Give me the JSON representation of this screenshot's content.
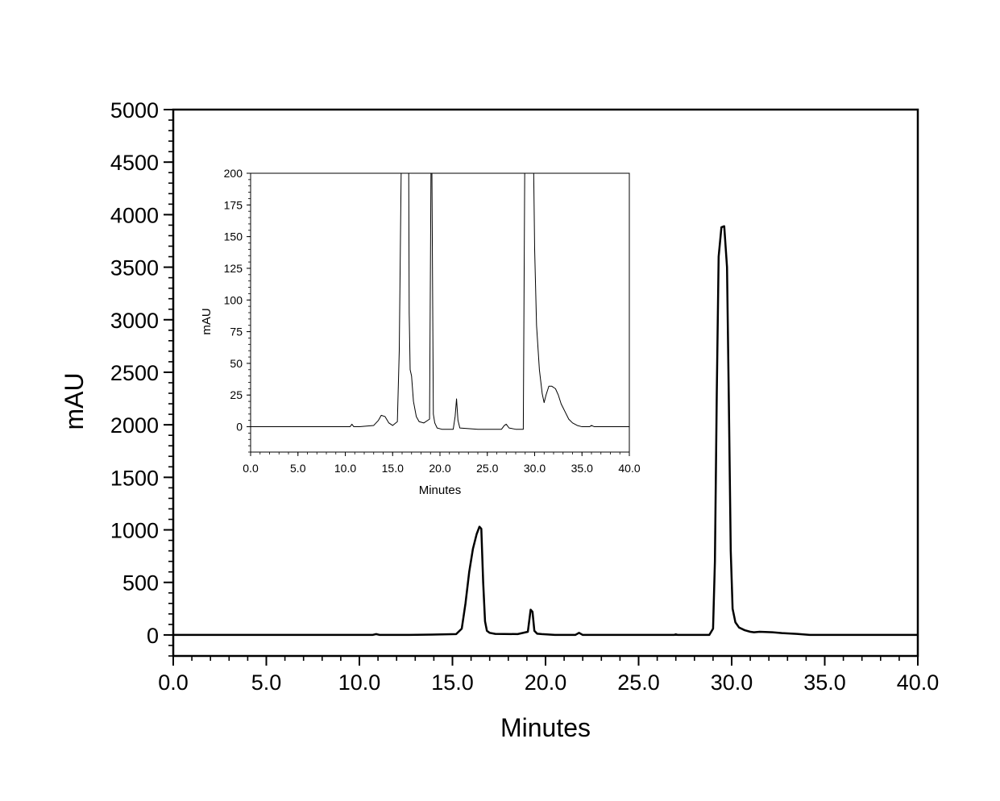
{
  "chart_data": [
    {
      "type": "line",
      "xlabel": "Minutes",
      "ylabel": "mAU",
      "xlim": [
        0,
        40
      ],
      "ylim": [
        -200,
        5000
      ],
      "x_ticks": [
        "0.0",
        "5.0",
        "10.0",
        "15.0",
        "20.0",
        "25.0",
        "30.0",
        "35.0",
        "40.0"
      ],
      "y_ticks": [
        "0",
        "500",
        "1000",
        "1500",
        "2000",
        "2500",
        "3000",
        "3500",
        "4000",
        "4500",
        "5000"
      ],
      "grid": false,
      "series": [
        {
          "x": [
            0,
            10.7,
            10.9,
            11.1,
            12.5,
            13.9,
            15.2,
            15.5,
            15.7,
            15.9,
            16.1,
            16.3,
            16.45,
            16.55,
            16.65,
            16.75,
            16.85,
            17.0,
            17.3,
            18.5,
            19.05,
            19.2,
            19.3,
            19.4,
            19.55,
            19.8,
            20.5,
            21.6,
            21.8,
            22.0,
            26.9,
            27.0,
            27.1,
            28.8,
            29.0,
            29.1,
            29.2,
            29.3,
            29.45,
            29.6,
            29.75,
            29.85,
            29.95,
            30.05,
            30.2,
            30.4,
            30.7,
            31.0,
            31.2,
            31.5,
            31.8,
            32.2,
            32.7,
            33.5,
            34.2,
            36.0,
            40.0
          ],
          "y": [
            0,
            0,
            8,
            0,
            0,
            3,
            8,
            60,
            300,
            600,
            820,
            960,
            1030,
            1010,
            500,
            130,
            40,
            20,
            10,
            8,
            30,
            240,
            220,
            40,
            12,
            8,
            0,
            0,
            20,
            0,
            0,
            6,
            0,
            0,
            60,
            700,
            2300,
            3600,
            3880,
            3890,
            3500,
            2200,
            800,
            250,
            120,
            70,
            45,
            30,
            25,
            30,
            28,
            25,
            18,
            10,
            0,
            0,
            0
          ]
        }
      ]
    },
    {
      "type": "line",
      "xlabel": "Minutes",
      "ylabel": "mAU",
      "xlim": [
        0,
        40
      ],
      "ylim": [
        -20,
        200
      ],
      "x_ticks": [
        "0.0",
        "5.0",
        "10.0",
        "15.0",
        "20.0",
        "25.0",
        "30.0",
        "35.0",
        "40.0"
      ],
      "y_ticks": [
        "0",
        "25",
        "50",
        "75",
        "100",
        "125",
        "150",
        "175",
        "200"
      ],
      "grid": false,
      "series": [
        {
          "x": [
            0,
            10.5,
            10.7,
            10.9,
            11.5,
            13.0,
            13.5,
            13.8,
            14.2,
            14.6,
            15.0,
            15.5,
            15.7,
            15.9,
            16.7,
            16.75,
            16.85,
            17.0,
            17.2,
            17.5,
            17.8,
            18.3,
            18.9,
            19.05,
            19.15,
            19.3,
            19.45,
            19.7,
            20.2,
            21.4,
            21.6,
            21.75,
            21.9,
            22.1,
            24.0,
            26.5,
            26.8,
            27.0,
            27.3,
            28.0,
            28.8,
            28.95,
            29.9,
            30.0,
            30.2,
            30.5,
            30.8,
            31.0,
            31.2,
            31.5,
            31.8,
            32.2,
            32.5,
            32.8,
            33.2,
            33.6,
            34.0,
            34.5,
            35.0,
            35.8,
            36.0,
            36.3,
            37.0,
            40.0
          ],
          "y": [
            0,
            0,
            2,
            0,
            0,
            1,
            5,
            9,
            8,
            3,
            1,
            4,
            60,
            200,
            200,
            90,
            45,
            40,
            20,
            8,
            4,
            3,
            6,
            200,
            200,
            10,
            3,
            -1,
            -2,
            -2,
            8,
            22,
            5,
            -1,
            -2,
            -2,
            1,
            2,
            -1,
            -2,
            -2,
            200,
            200,
            140,
            80,
            45,
            26,
            19,
            25,
            32,
            32,
            30,
            25,
            18,
            12,
            6,
            3,
            1,
            0,
            0,
            1,
            0,
            0,
            0
          ]
        }
      ]
    }
  ]
}
